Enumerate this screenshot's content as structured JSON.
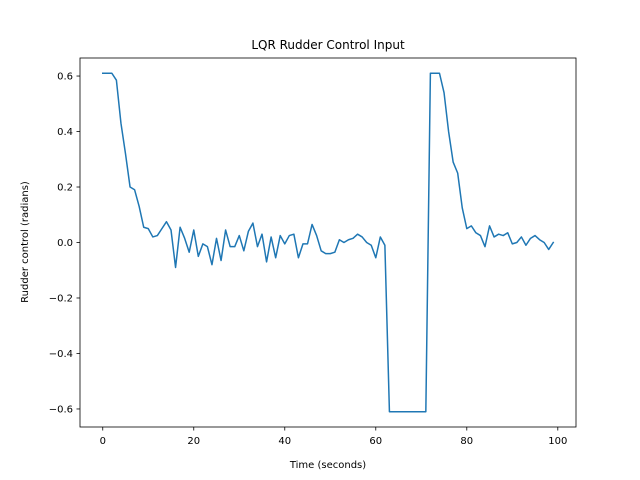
{
  "chart_data": {
    "type": "line",
    "title": "LQR Rudder Control Input",
    "xlabel": "Time (seconds)",
    "ylabel": "Rudder control (radians)",
    "xlim": [
      -5,
      104
    ],
    "ylim": [
      -0.665,
      0.665
    ],
    "x_ticks": [
      {
        "value": 0,
        "label": "0"
      },
      {
        "value": 20,
        "label": "20"
      },
      {
        "value": 40,
        "label": "40"
      },
      {
        "value": 60,
        "label": "60"
      },
      {
        "value": 80,
        "label": "80"
      },
      {
        "value": 100,
        "label": "100"
      }
    ],
    "y_ticks": [
      {
        "value": -0.6,
        "label": "−0.6"
      },
      {
        "value": -0.4,
        "label": "−0.4"
      },
      {
        "value": -0.2,
        "label": "−0.2"
      },
      {
        "value": 0.0,
        "label": "0.0"
      },
      {
        "value": 0.2,
        "label": "0.2"
      },
      {
        "value": 0.4,
        "label": "0.4"
      },
      {
        "value": 0.6,
        "label": "0.6"
      }
    ],
    "grid": false,
    "series": [
      {
        "color": "#1f77b4",
        "x": [
          0,
          1,
          2,
          3,
          4,
          5,
          6,
          7,
          8,
          9,
          10,
          11,
          12,
          13,
          14,
          15,
          16,
          17,
          18,
          19,
          20,
          21,
          22,
          23,
          24,
          25,
          26,
          27,
          28,
          29,
          30,
          31,
          32,
          33,
          34,
          35,
          36,
          37,
          38,
          39,
          40,
          41,
          42,
          43,
          44,
          45,
          46,
          47,
          48,
          49,
          50,
          51,
          52,
          53,
          54,
          55,
          56,
          57,
          58,
          59,
          60,
          61,
          62,
          63,
          64,
          65,
          66,
          67,
          68,
          69,
          70,
          71,
          72,
          73,
          74,
          75,
          76,
          77,
          78,
          79,
          80,
          81,
          82,
          83,
          84,
          85,
          86,
          87,
          88,
          89,
          90,
          91,
          92,
          93,
          94,
          95,
          96,
          97,
          98,
          99
        ],
        "y": [
          0.61,
          0.61,
          0.61,
          0.585,
          0.43,
          0.32,
          0.2,
          0.19,
          0.13,
          0.055,
          0.05,
          0.02,
          0.025,
          0.05,
          0.075,
          0.045,
          -0.09,
          0.055,
          0.015,
          -0.035,
          0.045,
          -0.05,
          -0.005,
          -0.015,
          -0.08,
          0.015,
          -0.065,
          0.045,
          -0.015,
          -0.015,
          0.025,
          -0.03,
          0.04,
          0.07,
          -0.015,
          0.03,
          -0.07,
          0.02,
          -0.055,
          0.025,
          -0.005,
          0.025,
          0.03,
          -0.055,
          -0.005,
          -0.005,
          0.065,
          0.025,
          -0.03,
          -0.04,
          -0.04,
          -0.035,
          0.01,
          0.0,
          0.01,
          0.015,
          0.03,
          0.02,
          0.0,
          -0.01,
          -0.055,
          0.02,
          -0.01,
          -0.61,
          -0.61,
          -0.61,
          -0.61,
          -0.61,
          -0.61,
          -0.61,
          -0.61,
          -0.61,
          0.61,
          0.61,
          0.61,
          0.54,
          0.4,
          0.29,
          0.25,
          0.125,
          0.05,
          0.06,
          0.035,
          0.025,
          -0.015,
          0.06,
          0.02,
          0.03,
          0.025,
          0.035,
          -0.005,
          0.0,
          0.02,
          -0.01,
          0.015,
          0.025,
          0.01,
          0.0,
          -0.025,
          0.0
        ]
      }
    ]
  }
}
